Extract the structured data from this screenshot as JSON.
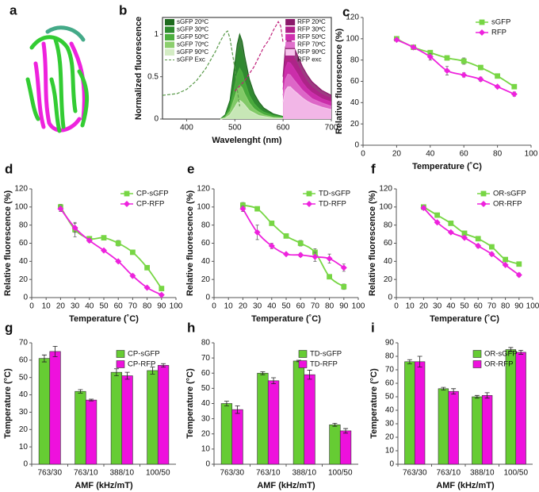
{
  "chart_data": [
    {
      "type": "image",
      "panel": "a"
    },
    {
      "type": "line",
      "panel": "b",
      "xlabel": "Wavelenght (nm)",
      "ylabel": "Normalized fluorescence",
      "xlim": [
        350,
        700
      ],
      "xticks": [
        400,
        500,
        600,
        700
      ],
      "ylim": [
        0,
        1.2
      ],
      "yticks": [
        0,
        0.5,
        1
      ],
      "series": [
        {
          "name": "sGFP 20ºC",
          "color": "#1e6b1e",
          "style": "solid",
          "x": [
            470,
            480,
            490,
            500,
            505,
            510,
            515,
            520,
            530,
            540,
            550,
            560,
            580,
            600
          ],
          "values": [
            0,
            0.05,
            0.22,
            0.65,
            0.88,
            1.0,
            0.92,
            0.75,
            0.47,
            0.3,
            0.2,
            0.13,
            0.06,
            0.03
          ]
        },
        {
          "name": "sGFP 30ºC",
          "color": "#2e8b2e",
          "style": "solid",
          "x": [
            470,
            480,
            490,
            500,
            505,
            510,
            515,
            520,
            530,
            540,
            550,
            560,
            580,
            600
          ],
          "values": [
            0,
            0.04,
            0.19,
            0.55,
            0.75,
            0.85,
            0.78,
            0.64,
            0.4,
            0.26,
            0.17,
            0.11,
            0.05,
            0.03
          ]
        },
        {
          "name": "sGFP 50ºC",
          "color": "#4caf3e",
          "style": "solid",
          "x": [
            470,
            480,
            490,
            500,
            505,
            510,
            515,
            520,
            530,
            540,
            550,
            560,
            580,
            600
          ],
          "values": [
            0,
            0.03,
            0.13,
            0.39,
            0.53,
            0.6,
            0.55,
            0.45,
            0.28,
            0.18,
            0.12,
            0.08,
            0.04,
            0.02
          ]
        },
        {
          "name": "sGFP 70ºC",
          "color": "#8ccf6e",
          "style": "solid",
          "x": [
            470,
            480,
            490,
            500,
            505,
            510,
            515,
            520,
            530,
            540,
            550,
            560,
            580,
            600
          ],
          "values": [
            0,
            0.02,
            0.09,
            0.26,
            0.35,
            0.4,
            0.37,
            0.3,
            0.19,
            0.12,
            0.08,
            0.05,
            0.02,
            0.01
          ]
        },
        {
          "name": "sGFP 90ºC",
          "color": "#d4ecc4",
          "style": "solid",
          "x": [
            470,
            480,
            490,
            500,
            505,
            510,
            515,
            520,
            530,
            540,
            550,
            560,
            580,
            600
          ],
          "values": [
            0,
            0.01,
            0.05,
            0.14,
            0.19,
            0.22,
            0.2,
            0.17,
            0.1,
            0.07,
            0.04,
            0.03,
            0.01,
            0.01
          ]
        },
        {
          "name": "sGFP Exc",
          "color": "#5a9a4a",
          "style": "dashed",
          "x": [
            350,
            380,
            400,
            420,
            440,
            460,
            470,
            480,
            485,
            490,
            500,
            505,
            510
          ],
          "values": [
            0.28,
            0.3,
            0.35,
            0.45,
            0.6,
            0.8,
            0.92,
            1.02,
            1.04,
            0.95,
            0.6,
            0.35,
            0.15
          ]
        },
        {
          "name": "RFP 20ºC",
          "color": "#8b1a6b",
          "style": "solid",
          "x": [
            600,
            605,
            610,
            615,
            620,
            630,
            640,
            650,
            660,
            680,
            700
          ],
          "values": [
            0.5,
            0.85,
            0.96,
            0.94,
            0.88,
            0.75,
            0.62,
            0.52,
            0.44,
            0.34,
            0.28
          ]
        },
        {
          "name": "RFP 30ºC",
          "color": "#b0208a",
          "style": "solid",
          "x": [
            600,
            605,
            610,
            615,
            620,
            630,
            640,
            650,
            660,
            680,
            700
          ],
          "values": [
            0.43,
            0.72,
            0.82,
            0.8,
            0.75,
            0.64,
            0.53,
            0.44,
            0.37,
            0.29,
            0.24
          ]
        },
        {
          "name": "RFP 50ºC",
          "color": "#d030b0",
          "style": "solid",
          "x": [
            600,
            605,
            610,
            615,
            620,
            630,
            640,
            650,
            660,
            680,
            700
          ],
          "values": [
            0.35,
            0.6,
            0.67,
            0.66,
            0.62,
            0.53,
            0.43,
            0.36,
            0.31,
            0.24,
            0.2
          ]
        },
        {
          "name": "RFP 70ºC",
          "color": "#e070cc",
          "style": "solid",
          "x": [
            600,
            605,
            610,
            615,
            620,
            630,
            640,
            650,
            660,
            680,
            700
          ],
          "values": [
            0.28,
            0.47,
            0.53,
            0.52,
            0.48,
            0.41,
            0.34,
            0.29,
            0.24,
            0.19,
            0.15
          ]
        },
        {
          "name": "RFP 90ºC",
          "color": "#f6c4ec",
          "style": "solid",
          "x": [
            600,
            605,
            610,
            615,
            620,
            630,
            640,
            650,
            660,
            680,
            700
          ],
          "values": [
            0.2,
            0.34,
            0.38,
            0.38,
            0.35,
            0.3,
            0.25,
            0.21,
            0.18,
            0.14,
            0.11
          ]
        },
        {
          "name": "RFP exc",
          "color": "#c0207a",
          "style": "dashed",
          "x": [
            500,
            520,
            540,
            560,
            570,
            580,
            590,
            595,
            600
          ],
          "values": [
            0.33,
            0.45,
            0.62,
            0.85,
            0.93,
            1.05,
            1.15,
            1.1,
            0.9
          ]
        }
      ]
    },
    {
      "type": "scatter",
      "panel": "c",
      "xlabel": "Temperature (˚C)",
      "ylabel": "Relative fluorescence (%)",
      "xlim": [
        0,
        100
      ],
      "xticks": [
        0,
        20,
        40,
        60,
        80,
        100
      ],
      "ylim": [
        0,
        120
      ],
      "yticks": [
        0,
        20,
        40,
        60,
        80,
        100,
        120
      ],
      "legend": "upper right",
      "x": [
        20,
        30,
        40,
        50,
        60,
        70,
        80,
        90
      ],
      "series": [
        {
          "name": "sGFP",
          "color": "#77d644",
          "marker": "square",
          "values": [
            100,
            92,
            87,
            82,
            79,
            73,
            65,
            55
          ],
          "errors": [
            1,
            1,
            1,
            2,
            3,
            2,
            2,
            2
          ]
        },
        {
          "name": "RFP",
          "color": "#ee22dd",
          "marker": "diamond",
          "values": [
            99,
            92,
            83,
            70,
            66,
            62,
            55,
            48
          ],
          "errors": [
            1,
            1,
            3,
            4,
            2,
            2,
            1,
            2
          ]
        }
      ]
    },
    {
      "type": "scatter",
      "panel": "d",
      "xlabel": "Temperature (˚C)",
      "ylabel": "Relative fluorescence (%)",
      "xlim": [
        0,
        100
      ],
      "xticks": [
        0,
        10,
        20,
        30,
        40,
        50,
        60,
        70,
        80,
        90,
        100
      ],
      "ylim": [
        0,
        120
      ],
      "yticks": [
        0,
        20,
        40,
        60,
        80,
        100,
        120
      ],
      "legend": "upper right",
      "x": [
        20,
        30,
        40,
        50,
        60,
        70,
        80,
        90
      ],
      "series": [
        {
          "name": "CP-sGFP",
          "color": "#77d644",
          "marker": "square",
          "values": [
            100,
            75,
            65,
            66,
            60,
            50,
            33,
            10
          ],
          "errors": [
            3,
            8,
            2,
            2,
            3,
            2,
            2,
            2
          ]
        },
        {
          "name": "CP-RFP",
          "color": "#ee22dd",
          "marker": "diamond",
          "values": [
            98,
            77,
            63,
            52,
            40,
            24,
            11,
            3
          ],
          "errors": [
            3,
            5,
            2,
            1,
            1,
            2,
            1,
            1
          ]
        }
      ]
    },
    {
      "type": "scatter",
      "panel": "e",
      "xlabel": "Temperature (˚C)",
      "ylabel": "Relative fluorescence (%)",
      "xlim": [
        0,
        100
      ],
      "xticks": [
        0,
        10,
        20,
        30,
        40,
        50,
        60,
        70,
        80,
        90,
        100
      ],
      "ylim": [
        0,
        120
      ],
      "yticks": [
        0,
        20,
        40,
        60,
        80,
        100,
        120
      ],
      "legend": "upper right",
      "x": [
        20,
        30,
        40,
        50,
        60,
        70,
        80,
        90
      ],
      "series": [
        {
          "name": "TD-sGFP",
          "color": "#77d644",
          "marker": "square",
          "values": [
            102,
            98,
            82,
            68,
            60,
            50,
            23,
            12
          ],
          "errors": [
            3,
            2,
            2,
            2,
            3,
            4,
            2,
            3
          ]
        },
        {
          "name": "TD-RFP",
          "color": "#ee22dd",
          "marker": "diamond",
          "values": [
            98,
            72,
            57,
            48,
            47,
            45,
            43,
            33
          ],
          "errors": [
            3,
            8,
            3,
            1,
            2,
            5,
            5,
            4
          ]
        }
      ]
    },
    {
      "type": "scatter",
      "panel": "f",
      "xlabel": "Temperature (˚C)",
      "ylabel": "Relative fluorescence (%)",
      "xlim": [
        0,
        100
      ],
      "xticks": [
        0,
        10,
        20,
        30,
        40,
        50,
        60,
        70,
        80,
        90,
        100
      ],
      "ylim": [
        0,
        120
      ],
      "yticks": [
        0,
        20,
        40,
        60,
        80,
        100,
        120
      ],
      "legend": "upper right",
      "x": [
        20,
        30,
        40,
        50,
        60,
        70,
        80,
        90
      ],
      "series": [
        {
          "name": "OR-sGFP",
          "color": "#77d644",
          "marker": "square",
          "values": [
            100,
            91,
            82,
            71,
            65,
            56,
            42,
            37
          ],
          "errors": [
            2,
            1,
            1,
            1,
            2,
            2,
            1,
            2
          ]
        },
        {
          "name": "OR-RFP",
          "color": "#ee22dd",
          "marker": "diamond",
          "values": [
            99,
            83,
            72,
            66,
            57,
            48,
            36,
            25
          ],
          "errors": [
            2,
            1,
            1,
            1,
            2,
            2,
            1,
            2
          ]
        }
      ]
    },
    {
      "type": "bar",
      "panel": "g",
      "xlabel": "AMF (kHz/mT)",
      "ylabel": "Temperature (°C)",
      "categories": [
        "763/30",
        "763/10",
        "388/10",
        "100/50"
      ],
      "ylim": [
        0,
        70
      ],
      "yticks": [
        0,
        10,
        20,
        30,
        40,
        50,
        60,
        70
      ],
      "legend": "upper right",
      "series": [
        {
          "name": "CP-sGFP",
          "color": "#66cc33",
          "values": [
            61,
            42,
            53,
            54
          ],
          "errors": [
            2,
            1,
            2,
            2
          ]
        },
        {
          "name": "CP-RFP",
          "color": "#ee11dd",
          "values": [
            65,
            37,
            51,
            57
          ],
          "errors": [
            3,
            0.5,
            2,
            1
          ]
        }
      ]
    },
    {
      "type": "bar",
      "panel": "h",
      "xlabel": "AMF (kHz/mT)",
      "ylabel": "Temperature (°C)",
      "categories": [
        "763/30",
        "763/10",
        "388/10",
        "100/50"
      ],
      "ylim": [
        0,
        80
      ],
      "yticks": [
        0,
        10,
        20,
        30,
        40,
        50,
        60,
        70,
        80
      ],
      "legend": "upper right",
      "series": [
        {
          "name": "TD-sGFP",
          "color": "#66cc33",
          "values": [
            40,
            60,
            68,
            26
          ],
          "errors": [
            1.5,
            1,
            0.5,
            1
          ]
        },
        {
          "name": "TD-RFP",
          "color": "#ee11dd",
          "values": [
            36,
            55,
            59,
            22
          ],
          "errors": [
            2.5,
            2,
            3,
            1.5
          ]
        }
      ]
    },
    {
      "type": "bar",
      "panel": "i",
      "xlabel": "AMF (kHz/mT)",
      "ylabel": "Temperature (°C)",
      "categories": [
        "763/30",
        "763/10",
        "388/10",
        "100/50"
      ],
      "ylim": [
        0,
        90
      ],
      "yticks": [
        0,
        10,
        20,
        30,
        40,
        50,
        60,
        70,
        80,
        90
      ],
      "legend": "upper right",
      "series": [
        {
          "name": "OR-sGFP",
          "color": "#66cc33",
          "values": [
            76,
            56,
            50,
            85
          ],
          "errors": [
            1.5,
            1,
            1,
            1.5
          ]
        },
        {
          "name": "OR-RFP",
          "color": "#ee11dd",
          "values": [
            76,
            54,
            51,
            83
          ],
          "errors": [
            4,
            2,
            2,
            1.5
          ]
        }
      ]
    }
  ]
}
